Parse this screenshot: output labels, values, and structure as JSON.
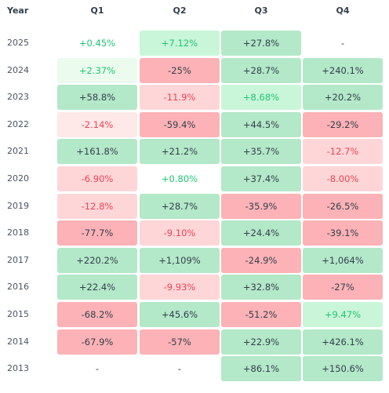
{
  "chart_data": {
    "type": "table",
    "columns": [
      "Year",
      "Q1",
      "Q2",
      "Q3",
      "Q4"
    ],
    "rows": [
      {
        "year": "2025",
        "cells": [
          {
            "text": "+0.45%",
            "value": 0.45
          },
          {
            "text": "+7.12%",
            "value": 7.12
          },
          {
            "text": "+27.8%",
            "value": 27.8
          },
          {
            "text": "-",
            "value": null
          }
        ]
      },
      {
        "year": "2024",
        "cells": [
          {
            "text": "+2.37%",
            "value": 2.37
          },
          {
            "text": "-25%",
            "value": -25
          },
          {
            "text": "+28.7%",
            "value": 28.7
          },
          {
            "text": "+240.1%",
            "value": 240.1
          }
        ]
      },
      {
        "year": "2023",
        "cells": [
          {
            "text": "+58.8%",
            "value": 58.8
          },
          {
            "text": "-11.9%",
            "value": -11.9
          },
          {
            "text": "+8.68%",
            "value": 8.68
          },
          {
            "text": "+20.2%",
            "value": 20.2
          }
        ]
      },
      {
        "year": "2022",
        "cells": [
          {
            "text": "-2.14%",
            "value": -2.14
          },
          {
            "text": "-59.4%",
            "value": -59.4
          },
          {
            "text": "+44.5%",
            "value": 44.5
          },
          {
            "text": "-29.2%",
            "value": -29.2
          }
        ]
      },
      {
        "year": "2021",
        "cells": [
          {
            "text": "+161.8%",
            "value": 161.8
          },
          {
            "text": "+21.2%",
            "value": 21.2
          },
          {
            "text": "+35.7%",
            "value": 35.7
          },
          {
            "text": "-12.7%",
            "value": -12.7
          }
        ]
      },
      {
        "year": "2020",
        "cells": [
          {
            "text": "-6.90%",
            "value": -6.9
          },
          {
            "text": "+0.80%",
            "value": 0.8
          },
          {
            "text": "+37.4%",
            "value": 37.4
          },
          {
            "text": "-8.00%",
            "value": -8.0
          }
        ]
      },
      {
        "year": "2019",
        "cells": [
          {
            "text": "-12.8%",
            "value": -12.8
          },
          {
            "text": "+28.7%",
            "value": 28.7
          },
          {
            "text": "-35.9%",
            "value": -35.9
          },
          {
            "text": "-26.5%",
            "value": -26.5
          }
        ]
      },
      {
        "year": "2018",
        "cells": [
          {
            "text": "-77.7%",
            "value": -77.7
          },
          {
            "text": "-9.10%",
            "value": -9.1
          },
          {
            "text": "+24.4%",
            "value": 24.4
          },
          {
            "text": "-39.1%",
            "value": -39.1
          }
        ]
      },
      {
        "year": "2017",
        "cells": [
          {
            "text": "+220.2%",
            "value": 220.2
          },
          {
            "text": "+1,109%",
            "value": 1109
          },
          {
            "text": "-24.9%",
            "value": -24.9
          },
          {
            "text": "+1,064%",
            "value": 1064
          }
        ]
      },
      {
        "year": "2016",
        "cells": [
          {
            "text": "+22.4%",
            "value": 22.4
          },
          {
            "text": "-9.93%",
            "value": -9.93
          },
          {
            "text": "+32.8%",
            "value": 32.8
          },
          {
            "text": "-27%",
            "value": -27
          }
        ]
      },
      {
        "year": "2015",
        "cells": [
          {
            "text": "-68.2%",
            "value": -68.2
          },
          {
            "text": "+45.6%",
            "value": 45.6
          },
          {
            "text": "-51.2%",
            "value": -51.2
          },
          {
            "text": "+9.47%",
            "value": 9.47
          }
        ]
      },
      {
        "year": "2014",
        "cells": [
          {
            "text": "-67.9%",
            "value": -67.9
          },
          {
            "text": "-57%",
            "value": -57
          },
          {
            "text": "+22.9%",
            "value": 22.9
          },
          {
            "text": "+426.1%",
            "value": 426.1
          }
        ]
      },
      {
        "year": "2013",
        "cells": [
          {
            "text": "-",
            "value": null
          },
          {
            "text": "-",
            "value": null
          },
          {
            "text": "+86.1%",
            "value": 86.1
          },
          {
            "text": "+150.6%",
            "value": 150.6
          }
        ]
      }
    ]
  },
  "colors": {
    "strong_positive_bg": "#b3e8c8",
    "medium_positive_bg": "#c9f5d9",
    "light_positive_bg": "#ebfcef",
    "strong_negative_bg": "#fcb2b6",
    "light_negative_bg": "#fed6d8",
    "faint_negative_bg": "#fee8e8",
    "dark_text": "#333f4d",
    "positive_text": "#1ec772",
    "negative_text": "#f0434f",
    "empty_text": "#333f4d",
    "header_text": "#333f4d",
    "year_text": "#4a5565"
  }
}
